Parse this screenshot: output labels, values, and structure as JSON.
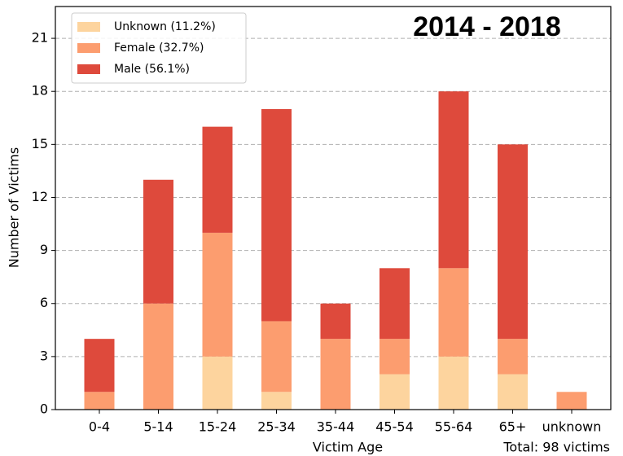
{
  "chart_data": {
    "type": "stacked_bar",
    "title": "2014 - 2018",
    "x_label": "Victim Age",
    "y_label": "Number of Victims",
    "annotation": "Total: 98 victims",
    "categories": [
      "0-4",
      "5-14",
      "15-24",
      "25-34",
      "35-44",
      "45-54",
      "55-64",
      "65+",
      "unknown"
    ],
    "series": [
      {
        "name": "Unknown (11.2%)",
        "color": "#fdd49e",
        "values": [
          0,
          0,
          3,
          1,
          0,
          2,
          3,
          2,
          0
        ]
      },
      {
        "name": "Female (32.7%)",
        "color": "#fc9d6f",
        "values": [
          1,
          6,
          7,
          4,
          4,
          2,
          5,
          2,
          1
        ]
      },
      {
        "name": "Male (56.1%)",
        "color": "#de4a3c",
        "values": [
          3,
          7,
          6,
          12,
          2,
          4,
          10,
          11,
          0
        ]
      }
    ],
    "ylim": [
      0,
      22.8
    ],
    "yticks": [
      0,
      3,
      6,
      9,
      12,
      15,
      18,
      21
    ],
    "grid": true,
    "legend": "upper left"
  }
}
